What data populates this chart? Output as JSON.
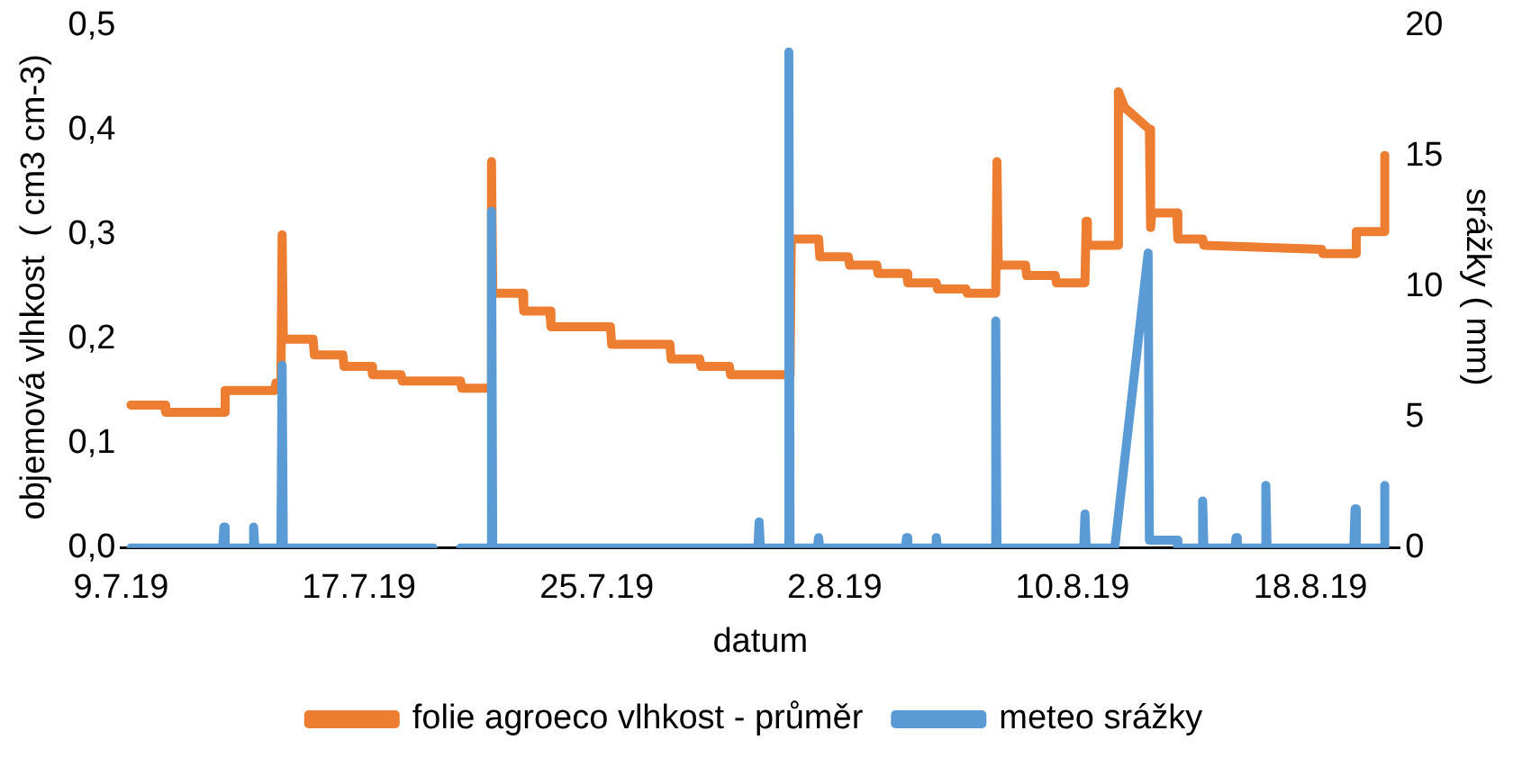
{
  "chart_data": {
    "type": "line",
    "xlabel": "datum",
    "ylabel": "objemová vlhkost  ( cm3 cm-3)",
    "y2label": "srážky ( mm)",
    "xlim": [
      "--07-09",
      "--08-21"
    ],
    "xticks": [
      {
        "value": "--07-09",
        "label": "9.7.19"
      },
      {
        "value": "--07-17",
        "label": "17.7.19"
      },
      {
        "value": "--07-25",
        "label": "25.7.19"
      },
      {
        "value": "--08-02",
        "label": "2.8.19"
      },
      {
        "value": "--08-10",
        "label": "10.8.19"
      },
      {
        "value": "--08-18",
        "label": "18.8.19"
      }
    ],
    "ylim": [
      0,
      0.5
    ],
    "yticks": [
      {
        "value": 0,
        "label": "0,0"
      },
      {
        "value": 0.1,
        "label": "0,1"
      },
      {
        "value": 0.2,
        "label": "0,2"
      },
      {
        "value": 0.3,
        "label": "0,3"
      },
      {
        "value": 0.4,
        "label": "0,4"
      },
      {
        "value": 0.5,
        "label": "0,5"
      }
    ],
    "y2lim": [
      0,
      20
    ],
    "y2ticks": [
      0,
      5,
      10,
      15,
      20
    ],
    "grid": false,
    "legend": "bottom",
    "marker": "none",
    "line_style": "solid",
    "series": [
      {
        "name": "folie agroeco vlhkost - průměr",
        "color": "#ed7d31",
        "x": [
          "--07-09T08:00",
          "--07-10T11:00",
          "--07-10T12:00",
          "--07-12T11:00",
          "--07-12T12:00",
          "--07-14T04:00",
          "--07-14T05:00",
          "--07-14T09:00",
          "--07-14T10:00",
          "--07-14T11:00",
          "--07-15T11:00",
          "--07-15T12:00",
          "--07-16T11:00",
          "--07-16T12:00",
          "--07-17T10:00",
          "--07-17T11:00",
          "--07-18T10:00",
          "--07-18T11:00",
          "--07-20T10:00",
          "--07-20T11:00",
          "--07-21T10:00",
          "--07-21T11:00",
          "--07-21T12:00",
          "--07-22T12:00",
          "--07-22T13:00",
          "--07-23T10:00",
          "--07-23T11:00",
          "--07-25T11:00",
          "--07-25T12:00",
          "--07-27T11:00",
          "--07-27T12:00",
          "--07-28T11:00",
          "--07-28T12:00",
          "--07-29T11:00",
          "--07-29T12:00",
          "--07-31T12:00",
          "--07-31T13:00",
          "--08-01T11:00",
          "--08-01T12:00",
          "--08-02T11:00",
          "--08-02T12:00",
          "--08-03T10:00",
          "--08-03T11:00",
          "--08-04T10:00",
          "--08-04T11:00",
          "--08-05T10:00",
          "--08-05T11:00",
          "--08-06T10:00",
          "--08-06T11:00",
          "--08-07T10:00",
          "--08-07T11:00",
          "--08-07T12:00",
          "--08-08T10:00",
          "--08-08T11:00",
          "--08-09T10:00",
          "--08-09T11:00",
          "--08-10T10:00",
          "--08-10T11:00",
          "--08-10T12:00",
          "--08-11T12:00",
          "--08-11T13:00",
          "--08-11T18:00",
          "--08-12T14:00",
          "--08-12T15:00",
          "--08-12T16:00",
          "--08-13T12:00",
          "--08-13T13:00",
          "--08-14T09:00",
          "--08-14T10:00",
          "--08-18T09:00",
          "--08-18T10:00",
          "--08-19T12:00",
          "--08-19T13:00",
          "--08-20T11:00",
          "--08-20T12:00"
        ],
        "values": [
          0.137,
          0.137,
          0.13,
          0.13,
          0.151,
          0.151,
          0.158,
          0.158,
          0.3,
          0.2,
          0.2,
          0.185,
          0.185,
          0.174,
          0.174,
          0.166,
          0.166,
          0.16,
          0.16,
          0.153,
          0.153,
          0.37,
          0.244,
          0.244,
          0.227,
          0.227,
          0.212,
          0.212,
          0.195,
          0.195,
          0.181,
          0.181,
          0.174,
          0.174,
          0.166,
          0.166,
          0.296,
          0.296,
          0.279,
          0.279,
          0.271,
          0.271,
          0.263,
          0.263,
          0.254,
          0.254,
          0.248,
          0.248,
          0.244,
          0.244,
          0.37,
          0.271,
          0.271,
          0.261,
          0.261,
          0.254,
          0.254,
          0.313,
          0.29,
          0.29,
          0.437,
          0.422,
          0.401,
          0.307,
          0.321,
          0.321,
          0.296,
          0.296,
          0.29,
          0.286,
          0.282,
          0.282,
          0.303,
          0.303,
          0.376
        ]
      },
      {
        "name": "meteo srážky",
        "color": "#5b9bd5",
        "axis": "y2",
        "x": [
          "--07-09T08:00",
          "--07-12T10:00",
          "--07-12T11:00",
          "--07-12T12:00",
          "--07-13T10:00",
          "--07-13T11:00",
          "--07-13T12:00",
          "--07-14T09:00",
          "--07-14T10:00",
          "--07-14T11:00",
          "--07-19T12:00",
          "--07-19T13:00",
          "--07-20T10:00",
          "--07-21T10:00",
          "--07-21T11:00",
          "--07-21T12:00",
          "--07-30T10:00",
          "--07-30T11:00",
          "--07-30T12:00",
          "--07-31T10:00",
          "--07-31T11:00",
          "--07-31T12:00",
          "--08-01T10:00",
          "--08-01T11:00",
          "--08-01T12:00",
          "--08-04T09:00",
          "--08-04T10:00",
          "--08-04T11:00",
          "--08-05T09:00",
          "--08-05T10:00",
          "--08-05T11:00",
          "--08-07T09:00",
          "--08-07T10:00",
          "--08-07T11:00",
          "--08-10T09:00",
          "--08-10T10:00",
          "--08-10T11:00",
          "--08-11T10:00",
          "--08-12T13:00",
          "--08-12T14:00",
          "--08-13T12:00",
          "--08-13T13:00",
          "--08-14T08:00",
          "--08-14T09:00",
          "--08-14T10:00",
          "--08-15T11:00",
          "--08-15T12:00",
          "--08-15T13:00",
          "--08-16T11:00",
          "--08-16T12:00",
          "--08-16T13:00",
          "--08-19T11:00",
          "--08-19T12:00",
          "--08-19T13:00",
          "--08-20T11:00",
          "--08-20T12:00"
        ],
        "values": [
          0,
          0,
          0.8,
          0,
          0,
          0.8,
          0,
          0,
          7.0,
          0,
          0,
          null,
          0,
          0,
          12.9,
          0,
          0,
          1.0,
          0,
          0,
          19.0,
          0,
          0,
          0.4,
          0,
          0,
          0.4,
          0,
          0,
          0.4,
          0,
          0,
          8.7,
          0,
          0,
          1.3,
          0,
          0,
          11.3,
          0.3,
          0.3,
          0,
          0,
          1.8,
          0,
          0,
          0.4,
          0,
          0,
          2.4,
          0,
          0,
          1.5,
          0,
          0,
          2.4
        ]
      }
    ]
  }
}
